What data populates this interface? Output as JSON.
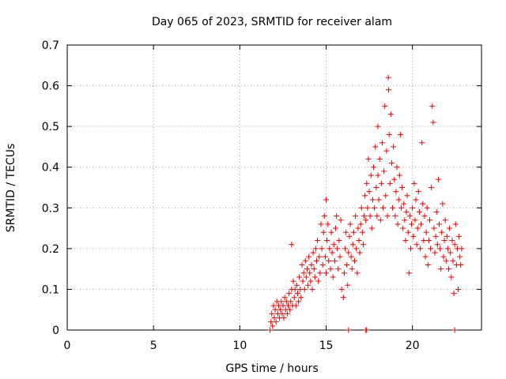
{
  "chart_data": {
    "type": "scatter",
    "title": "Day 065 of 2023, SRMTID for receiver alam",
    "xlabel": "GPS time / hours",
    "ylabel": "SRMTID / TECUs",
    "xlim": [
      0,
      24
    ],
    "ylim": [
      0,
      0.7
    ],
    "xticks": [
      0,
      5,
      10,
      15,
      20
    ],
    "yticks": [
      0,
      0.1,
      0.2,
      0.3,
      0.4,
      0.5,
      0.6,
      0.7
    ],
    "xtick_labels": [
      "0",
      "5",
      "10",
      "15",
      "20"
    ],
    "ytick_labels": [
      "0",
      "0.1",
      "0.2",
      "0.3",
      "0.4",
      "0.5",
      "0.6",
      "0.7"
    ],
    "grid": true,
    "marker": "plus",
    "color": "#ee0000",
    "series": [
      {
        "name": "SRMTID",
        "points": [
          [
            11.75,
            0.0
          ],
          [
            11.8,
            0.02
          ],
          [
            11.85,
            0.04
          ],
          [
            11.9,
            0.01
          ],
          [
            11.95,
            0.06
          ],
          [
            12.0,
            0.03
          ],
          [
            12.05,
            0.05
          ],
          [
            12.1,
            0.02
          ],
          [
            12.15,
            0.07
          ],
          [
            12.2,
            0.04
          ],
          [
            12.25,
            0.06
          ],
          [
            12.3,
            0.03
          ],
          [
            12.35,
            0.05
          ],
          [
            12.4,
            0.07
          ],
          [
            12.45,
            0.04
          ],
          [
            12.5,
            0.06
          ],
          [
            12.55,
            0.03
          ],
          [
            12.6,
            0.08
          ],
          [
            12.65,
            0.05
          ],
          [
            12.7,
            0.07
          ],
          [
            12.75,
            0.04
          ],
          [
            12.8,
            0.06
          ],
          [
            12.85,
            0.09
          ],
          [
            12.9,
            0.05
          ],
          [
            12.95,
            0.07
          ],
          [
            13.0,
            0.1
          ],
          [
            13.0,
            0.21
          ],
          [
            13.05,
            0.06
          ],
          [
            13.1,
            0.12
          ],
          [
            13.15,
            0.08
          ],
          [
            13.2,
            0.1
          ],
          [
            13.25,
            0.06
          ],
          [
            13.3,
            0.11
          ],
          [
            13.35,
            0.09
          ],
          [
            13.4,
            0.07
          ],
          [
            13.45,
            0.13
          ],
          [
            13.5,
            0.1
          ],
          [
            13.55,
            0.08
          ],
          [
            13.6,
            0.16
          ],
          [
            13.65,
            0.12
          ],
          [
            13.7,
            0.14
          ],
          [
            13.75,
            0.1
          ],
          [
            13.8,
            0.17
          ],
          [
            13.85,
            0.13
          ],
          [
            13.9,
            0.15
          ],
          [
            13.95,
            0.11
          ],
          [
            14.0,
            0.18
          ],
          [
            14.05,
            0.14
          ],
          [
            14.1,
            0.12
          ],
          [
            14.15,
            0.16
          ],
          [
            14.2,
            0.1
          ],
          [
            14.25,
            0.19
          ],
          [
            14.3,
            0.15
          ],
          [
            14.35,
            0.13
          ],
          [
            14.4,
            0.2
          ],
          [
            14.45,
            0.17
          ],
          [
            14.5,
            0.22
          ],
          [
            14.55,
            0.12
          ],
          [
            14.6,
            0.18
          ],
          [
            14.65,
            0.14
          ],
          [
            14.7,
            0.26
          ],
          [
            14.75,
            0.2
          ],
          [
            14.8,
            0.16
          ],
          [
            14.85,
            0.24
          ],
          [
            14.9,
            0.28
          ],
          [
            14.95,
            0.18
          ],
          [
            15.0,
            0.32
          ],
          [
            15.0,
            0.14
          ],
          [
            15.05,
            0.22
          ],
          [
            15.1,
            0.26
          ],
          [
            15.15,
            0.17
          ],
          [
            15.2,
            0.2
          ],
          [
            15.25,
            0.15
          ],
          [
            15.3,
            0.24
          ],
          [
            15.35,
            0.19
          ],
          [
            15.4,
            0.13
          ],
          [
            15.45,
            0.21
          ],
          [
            15.5,
            0.17
          ],
          [
            15.55,
            0.25
          ],
          [
            15.6,
            0.28
          ],
          [
            15.65,
            0.2
          ],
          [
            15.7,
            0.15
          ],
          [
            15.75,
            0.22
          ],
          [
            15.8,
            0.18
          ],
          [
            15.85,
            0.27
          ],
          [
            15.9,
            0.1
          ],
          [
            16.0,
            0.08
          ],
          [
            16.05,
            0.14
          ],
          [
            16.1,
            0.2
          ],
          [
            16.15,
            0.24
          ],
          [
            16.2,
            0.16
          ],
          [
            16.25,
            0.11
          ],
          [
            16.3,
            0.19
          ],
          [
            16.35,
            0.23
          ],
          [
            16.4,
            0.26
          ],
          [
            16.45,
            0.18
          ],
          [
            16.5,
            0.15
          ],
          [
            16.55,
            0.21
          ],
          [
            16.6,
            0.24
          ],
          [
            16.65,
            0.17
          ],
          [
            16.7,
            0.28
          ],
          [
            16.75,
            0.2
          ],
          [
            16.8,
            0.14
          ],
          [
            16.85,
            0.25
          ],
          [
            16.9,
            0.22
          ],
          [
            16.95,
            0.19
          ],
          [
            17.0,
            0.26
          ],
          [
            17.05,
            0.3
          ],
          [
            17.1,
            0.24
          ],
          [
            17.15,
            0.21
          ],
          [
            17.2,
            0.28
          ],
          [
            17.25,
            0.33
          ],
          [
            17.3,
            0.27
          ],
          [
            17.35,
            0.36
          ],
          [
            17.4,
            0.3
          ],
          [
            17.45,
            0.42
          ],
          [
            17.5,
            0.34
          ],
          [
            17.55,
            0.28
          ],
          [
            17.6,
            0.38
          ],
          [
            17.65,
            0.25
          ],
          [
            17.7,
            0.32
          ],
          [
            17.75,
            0.4
          ],
          [
            17.8,
            0.3
          ],
          [
            17.85,
            0.45
          ],
          [
            17.9,
            0.35
          ],
          [
            17.95,
            0.28
          ],
          [
            18.0,
            0.5
          ],
          [
            18.0,
            0.38
          ],
          [
            18.05,
            0.32
          ],
          [
            18.1,
            0.42
          ],
          [
            18.15,
            0.27
          ],
          [
            18.2,
            0.36
          ],
          [
            18.25,
            0.46
          ],
          [
            18.3,
            0.3
          ],
          [
            18.35,
            0.39
          ],
          [
            18.4,
            0.55
          ],
          [
            18.45,
            0.33
          ],
          [
            18.5,
            0.44
          ],
          [
            18.55,
            0.28
          ],
          [
            18.6,
            0.62
          ],
          [
            18.62,
            0.59
          ],
          [
            18.65,
            0.48
          ],
          [
            18.7,
            0.36
          ],
          [
            18.75,
            0.53
          ],
          [
            18.8,
            0.41
          ],
          [
            18.85,
            0.3
          ],
          [
            18.9,
            0.45
          ],
          [
            18.95,
            0.37
          ],
          [
            19.0,
            0.28
          ],
          [
            19.05,
            0.34
          ],
          [
            19.1,
            0.4
          ],
          [
            19.15,
            0.26
          ],
          [
            19.2,
            0.32
          ],
          [
            19.25,
            0.38
          ],
          [
            19.3,
            0.48
          ],
          [
            19.35,
            0.3
          ],
          [
            19.4,
            0.35
          ],
          [
            19.45,
            0.25
          ],
          [
            19.5,
            0.31
          ],
          [
            19.55,
            0.27
          ],
          [
            19.6,
            0.22
          ],
          [
            19.65,
            0.29
          ],
          [
            19.7,
            0.33
          ],
          [
            19.75,
            0.24
          ],
          [
            19.8,
            0.14
          ],
          [
            19.85,
            0.28
          ],
          [
            19.9,
            0.2
          ],
          [
            19.95,
            0.26
          ],
          [
            20.0,
            0.3
          ],
          [
            20.05,
            0.23
          ],
          [
            20.1,
            0.36
          ],
          [
            20.15,
            0.27
          ],
          [
            20.2,
            0.32
          ],
          [
            20.25,
            0.21
          ],
          [
            20.3,
            0.25
          ],
          [
            20.35,
            0.34
          ],
          [
            20.4,
            0.29
          ],
          [
            20.45,
            0.2
          ],
          [
            20.5,
            0.26
          ],
          [
            20.55,
            0.46
          ],
          [
            20.6,
            0.31
          ],
          [
            20.65,
            0.22
          ],
          [
            20.7,
            0.28
          ],
          [
            20.75,
            0.18
          ],
          [
            20.8,
            0.24
          ],
          [
            20.85,
            0.3
          ],
          [
            20.9,
            0.16
          ],
          [
            20.95,
            0.22
          ],
          [
            21.0,
            0.27
          ],
          [
            21.05,
            0.2
          ],
          [
            21.1,
            0.35
          ],
          [
            21.15,
            0.55
          ],
          [
            21.2,
            0.51
          ],
          [
            21.25,
            0.25
          ],
          [
            21.3,
            0.19
          ],
          [
            21.35,
            0.23
          ],
          [
            21.4,
            0.29
          ],
          [
            21.45,
            0.21
          ],
          [
            21.5,
            0.37
          ],
          [
            21.55,
            0.26
          ],
          [
            21.6,
            0.2
          ],
          [
            21.65,
            0.15
          ],
          [
            21.7,
            0.24
          ],
          [
            21.75,
            0.31
          ],
          [
            21.8,
            0.18
          ],
          [
            21.85,
            0.22
          ],
          [
            21.9,
            0.27
          ],
          [
            21.95,
            0.17
          ],
          [
            22.0,
            0.23
          ],
          [
            22.05,
            0.2
          ],
          [
            22.1,
            0.15
          ],
          [
            22.15,
            0.25
          ],
          [
            22.2,
            0.19
          ],
          [
            22.25,
            0.13
          ],
          [
            22.3,
            0.22
          ],
          [
            22.35,
            0.17
          ],
          [
            22.4,
            0.09
          ],
          [
            22.45,
            0.21
          ],
          [
            22.5,
            0.26
          ],
          [
            22.55,
            0.16
          ],
          [
            22.6,
            0.2
          ],
          [
            22.65,
            0.1
          ],
          [
            22.7,
            0.23
          ],
          [
            22.75,
            0.18
          ],
          [
            22.8,
            0.16
          ],
          [
            22.85,
            0.2
          ],
          [
            16.3,
            0.0
          ],
          [
            17.3,
            0.0
          ],
          [
            17.35,
            0.0
          ],
          [
            22.45,
            0.0
          ]
        ]
      }
    ]
  }
}
